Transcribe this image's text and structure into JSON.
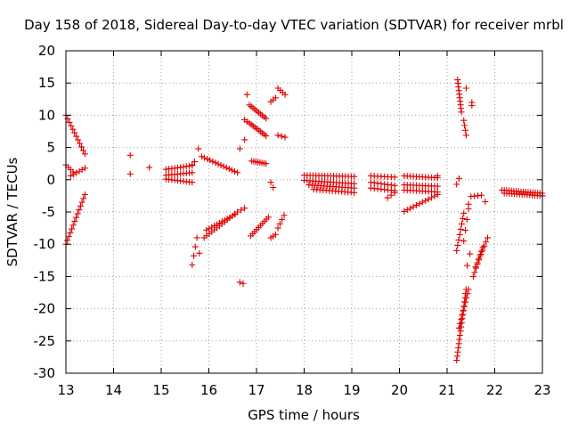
{
  "chart_data": {
    "type": "scatter",
    "title": "Day 158 of 2018, Sidereal Day-to-day VTEC variation (SDTVAR) for receiver mrbl",
    "xlabel": "GPS time / hours",
    "ylabel": "SDTVAR / TECUs",
    "xlim": [
      13,
      23
    ],
    "ylim": [
      -30,
      20
    ],
    "xticks": [
      13,
      14,
      15,
      16,
      17,
      18,
      19,
      20,
      21,
      22,
      23
    ],
    "yticks": [
      -30,
      -25,
      -20,
      -15,
      -10,
      -5,
      0,
      5,
      10,
      15,
      20
    ],
    "grid": true,
    "marker": "+",
    "color": "#e00000",
    "segments": [
      {
        "t0": 13.0,
        "t1": 13.4,
        "v0": 10,
        "v1": 4,
        "n": 12
      },
      {
        "t0": 13.0,
        "t1": 13.15,
        "v0": 2.3,
        "v1": 1.2,
        "n": 4
      },
      {
        "t0": 13.1,
        "t1": 13.4,
        "v0": 0.6,
        "v1": 1.8,
        "n": 6
      },
      {
        "t0": 13.0,
        "t1": 13.4,
        "v0": -10,
        "v1": -2.3,
        "n": 14
      },
      {
        "t0": 14.35,
        "t1": 14.35,
        "v0": 3.8,
        "v1": 3.8,
        "n": 1
      },
      {
        "t0": 14.35,
        "t1": 14.35,
        "v0": 0.9,
        "v1": 0.9,
        "n": 1
      },
      {
        "t0": 14.75,
        "t1": 14.75,
        "v0": 1.9,
        "v1": 1.9,
        "n": 1
      },
      {
        "t0": 15.1,
        "t1": 15.65,
        "v0": 1.6,
        "v1": 2.2,
        "n": 10
      },
      {
        "t0": 15.1,
        "t1": 15.65,
        "v0": 0.7,
        "v1": 1.1,
        "n": 10
      },
      {
        "t0": 15.1,
        "t1": 15.65,
        "v0": 0.1,
        "v1": -0.4,
        "n": 10
      },
      {
        "t0": 15.65,
        "t1": 15.7,
        "v0": 2.3,
        "v1": 2.8,
        "n": 2
      },
      {
        "t0": 15.78,
        "t1": 15.78,
        "v0": 4.8,
        "v1": 4.8,
        "n": 1
      },
      {
        "t0": 15.85,
        "t1": 16.6,
        "v0": 3.6,
        "v1": 1.1,
        "n": 14
      },
      {
        "t0": 15.65,
        "t1": 15.75,
        "v0": -13.2,
        "v1": -9,
        "n": 4
      },
      {
        "t0": 15.8,
        "t1": 15.8,
        "v0": -11.4,
        "v1": -11.4,
        "n": 1
      },
      {
        "t0": 15.9,
        "t1": 16.6,
        "v0": -9,
        "v1": -5,
        "n": 14
      },
      {
        "t0": 15.95,
        "t1": 16.55,
        "v0": -7.8,
        "v1": -5.4,
        "n": 12
      },
      {
        "t0": 16.6,
        "t1": 16.75,
        "v0": -5,
        "v1": -4.4,
        "n": 3
      },
      {
        "t0": 16.65,
        "t1": 16.72,
        "v0": -15.9,
        "v1": -16.1,
        "n": 2
      },
      {
        "t0": 16.65,
        "t1": 16.65,
        "v0": 4.8,
        "v1": 4.8,
        "n": 1
      },
      {
        "t0": 16.75,
        "t1": 16.75,
        "v0": 6.2,
        "v1": 6.2,
        "n": 1
      },
      {
        "t0": 16.75,
        "t1": 16.8,
        "v0": 9.3,
        "v1": 9.0,
        "n": 2
      },
      {
        "t0": 16.8,
        "t1": 16.8,
        "v0": 13.2,
        "v1": 13.2,
        "n": 1
      },
      {
        "t0": 16.85,
        "t1": 17.2,
        "v0": 11.6,
        "v1": 9.5,
        "n": 10
      },
      {
        "t0": 16.85,
        "t1": 17.2,
        "v0": 8.8,
        "v1": 6.8,
        "n": 10
      },
      {
        "t0": 16.9,
        "t1": 17.2,
        "v0": 2.9,
        "v1": 2.5,
        "n": 8
      },
      {
        "t0": 16.88,
        "t1": 17.25,
        "v0": -8.7,
        "v1": -5.8,
        "n": 10
      },
      {
        "t0": 17.3,
        "t1": 17.4,
        "v0": 12.1,
        "v1": 12.7,
        "n": 3
      },
      {
        "t0": 17.45,
        "t1": 17.6,
        "v0": 14.2,
        "v1": 13.2,
        "n": 4
      },
      {
        "t0": 17.45,
        "t1": 17.6,
        "v0": 6.9,
        "v1": 6.6,
        "n": 3
      },
      {
        "t0": 17.3,
        "t1": 17.35,
        "v0": -0.4,
        "v1": -1.2,
        "n": 2
      },
      {
        "t0": 17.3,
        "t1": 17.4,
        "v0": -9,
        "v1": -8.5,
        "n": 3
      },
      {
        "t0": 17.45,
        "t1": 17.58,
        "v0": -7.5,
        "v1": -5.5,
        "n": 4
      },
      {
        "t0": 18.0,
        "t1": 19.05,
        "v0": 0.7,
        "v1": 0.5,
        "n": 18
      },
      {
        "t0": 18.0,
        "t1": 19.05,
        "v0": -0.1,
        "v1": -0.6,
        "n": 18
      },
      {
        "t0": 18.1,
        "t1": 19.05,
        "v0": -0.8,
        "v1": -1.3,
        "n": 16
      },
      {
        "t0": 18.2,
        "t1": 19.05,
        "v0": -1.5,
        "v1": -2.0,
        "n": 14
      },
      {
        "t0": 19.4,
        "t1": 19.9,
        "v0": 0.6,
        "v1": 0.4,
        "n": 8
      },
      {
        "t0": 19.4,
        "t1": 19.9,
        "v0": -0.4,
        "v1": -0.9,
        "n": 8
      },
      {
        "t0": 19.4,
        "t1": 19.9,
        "v0": -1.3,
        "v1": -1.7,
        "n": 8
      },
      {
        "t0": 19.75,
        "t1": 19.9,
        "v0": -2.8,
        "v1": -2.0,
        "n": 3
      },
      {
        "t0": 20.1,
        "t1": 20.8,
        "v0": 0.6,
        "v1": 0.3,
        "n": 12
      },
      {
        "t0": 20.1,
        "t1": 20.8,
        "v0": -0.8,
        "v1": -1.0,
        "n": 12
      },
      {
        "t0": 20.1,
        "t1": 20.8,
        "v0": -1.6,
        "v1": -1.9,
        "n": 12
      },
      {
        "t0": 20.1,
        "t1": 20.8,
        "v0": -4.9,
        "v1": -2.3,
        "n": 12
      },
      {
        "t0": 20.8,
        "t1": 20.8,
        "v0": 0.6,
        "v1": 0.6,
        "n": 1
      },
      {
        "t0": 21.2,
        "t1": 21.2,
        "v0": -0.7,
        "v1": -0.7,
        "n": 1
      },
      {
        "t0": 21.25,
        "t1": 21.25,
        "v0": 0.2,
        "v1": 0.2,
        "n": 1
      },
      {
        "t0": 21.22,
        "t1": 21.3,
        "v0": 15.5,
        "v1": 10.5,
        "n": 10
      },
      {
        "t0": 21.4,
        "t1": 21.45,
        "v0": 14.2,
        "v1": 14.2,
        "n": 1
      },
      {
        "t0": 21.52,
        "t1": 21.52,
        "v0": 12.0,
        "v1": 11.5,
        "n": 2
      },
      {
        "t0": 21.35,
        "t1": 21.4,
        "v0": 9.2,
        "v1": 6.9,
        "n": 4
      },
      {
        "t0": 21.2,
        "t1": 21.35,
        "v0": -11,
        "v1": -5.2,
        "n": 8
      },
      {
        "t0": 21.2,
        "t1": 21.4,
        "v0": -28,
        "v1": -17,
        "n": 18
      },
      {
        "t0": 21.25,
        "t1": 21.45,
        "v0": -23,
        "v1": -17,
        "n": 10
      },
      {
        "t0": 21.35,
        "t1": 21.45,
        "v0": -9.5,
        "v1": -4.5,
        "n": 4
      },
      {
        "t0": 21.45,
        "t1": 21.45,
        "v0": -3.8,
        "v1": -3.8,
        "n": 1
      },
      {
        "t0": 21.42,
        "t1": 21.48,
        "v0": -13.3,
        "v1": -11.5,
        "n": 2
      },
      {
        "t0": 21.55,
        "t1": 21.75,
        "v0": -15.0,
        "v1": -10.5,
        "n": 8
      },
      {
        "t0": 21.6,
        "t1": 21.85,
        "v0": -13.5,
        "v1": -9.0,
        "n": 8
      },
      {
        "t0": 21.5,
        "t1": 21.72,
        "v0": -2.6,
        "v1": -2.4,
        "n": 4
      },
      {
        "t0": 21.8,
        "t1": 21.8,
        "v0": -3.4,
        "v1": -3.4,
        "n": 1
      },
      {
        "t0": 22.15,
        "t1": 23.0,
        "v0": -1.6,
        "v1": -2.1,
        "n": 18
      },
      {
        "t0": 22.2,
        "t1": 23.0,
        "v0": -2.1,
        "v1": -2.5,
        "n": 16
      }
    ]
  }
}
